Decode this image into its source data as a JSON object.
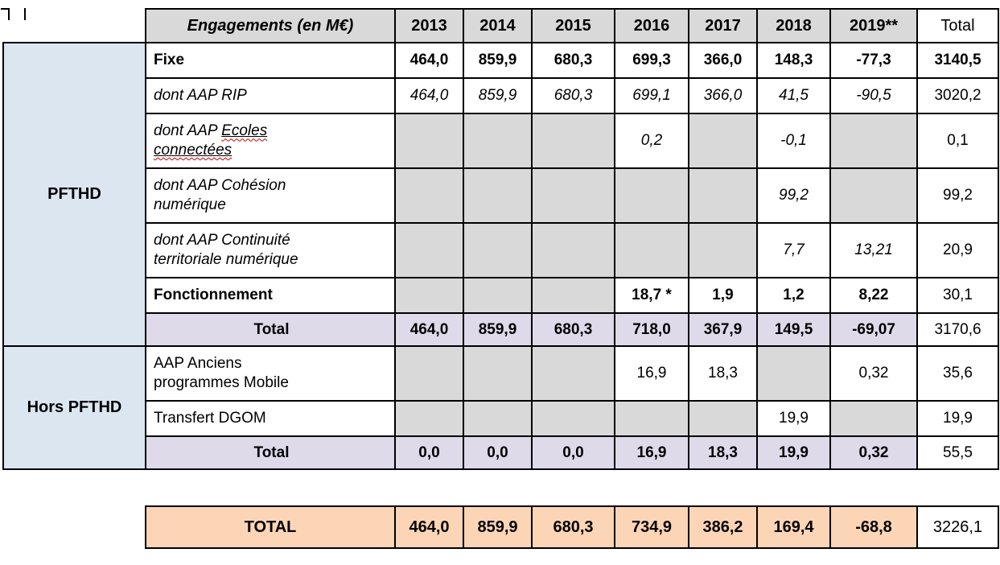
{
  "colors": {
    "gray": "#d9d9d9",
    "blue": "#dce6f1",
    "lavender": "#dedaea",
    "orange": "#fbd5b5"
  },
  "main_table": {
    "header": {
      "label": "Engagements (en M€)",
      "years": [
        "2013",
        "2014",
        "2015",
        "2016",
        "2017",
        "2018",
        "2019**"
      ],
      "total_label": "Total"
    },
    "groups": [
      {
        "name": "PFTHD",
        "rows": [
          {
            "label_lines": [
              "Fixe"
            ],
            "style": "bold",
            "align": "left",
            "bg": "white",
            "values": [
              "464,0",
              "859,9",
              "680,3",
              "699,3",
              "366,0",
              "148,3",
              "-77,3"
            ],
            "total": "3140,5",
            "total_style": "bold"
          },
          {
            "label_lines": [
              "dont AAP RIP"
            ],
            "style": "italic",
            "align": "left",
            "bg": "white",
            "values": [
              "464,0",
              "859,9",
              "680,3",
              "699,1",
              "366,0",
              "41,5",
              "-90,5"
            ],
            "total": "3020,2",
            "total_style": "normal"
          },
          {
            "label_lines": [
              "dont AAP Ecoles",
              "connectées"
            ],
            "underline_words": [
              "Ecoles",
              "connectées"
            ],
            "style": "italic",
            "align": "left",
            "bg": "white",
            "values": [
              "",
              "",
              "",
              "0,2",
              "",
              "-0,1",
              ""
            ],
            "total": "0,1",
            "total_style": "normal"
          },
          {
            "label_lines": [
              "dont AAP Cohésion",
              "numérique"
            ],
            "style": "italic",
            "align": "left",
            "bg": "white",
            "values": [
              "",
              "",
              "",
              "",
              "",
              "99,2",
              ""
            ],
            "total": "99,2",
            "total_style": "normal"
          },
          {
            "label_lines": [
              "dont AAP Continuité",
              "territoriale numérique"
            ],
            "style": "italic",
            "align": "left",
            "bg": "white",
            "values": [
              "",
              "",
              "",
              "",
              "",
              "7,7",
              "13,21"
            ],
            "total": "20,9",
            "total_style": "normal"
          },
          {
            "label_lines": [
              "Fonctionnement"
            ],
            "style": "bold",
            "align": "left",
            "bg": "white",
            "values": [
              "",
              "",
              "",
              "18,7 *",
              "1,9",
              "1,2",
              "8,22"
            ],
            "total": "30,1",
            "total_style": "normal"
          },
          {
            "label_lines": [
              "Total"
            ],
            "style": "bold",
            "align": "center",
            "bg": "lavender",
            "values": [
              "464,0",
              "859,9",
              "680,3",
              "718,0",
              "367,9",
              "149,5",
              "-69,07"
            ],
            "total": "3170,6",
            "total_style": "normal"
          }
        ]
      },
      {
        "name": "Hors PFTHD",
        "rows": [
          {
            "label_lines": [
              "AAP Anciens",
              "programmes Mobile"
            ],
            "style": "normal",
            "align": "left",
            "bg": "white",
            "values": [
              "",
              "",
              "",
              "16,9",
              "18,3",
              "",
              "0,32"
            ],
            "total": "35,6",
            "total_style": "normal"
          },
          {
            "label_lines": [
              "Transfert DGOM"
            ],
            "style": "normal",
            "align": "left",
            "bg": "white",
            "values": [
              "",
              "",
              "",
              "",
              "",
              "19,9",
              ""
            ],
            "total": "19,9",
            "total_style": "normal"
          },
          {
            "label_lines": [
              "Total"
            ],
            "style": "bold",
            "align": "center",
            "bg": "lavender",
            "values": [
              "0,0",
              "0,0",
              "0,0",
              "16,9",
              "18,3",
              "19,9",
              "0,32"
            ],
            "total": "55,5",
            "total_style": "normal"
          }
        ]
      }
    ]
  },
  "grand_total": {
    "label": "TOTAL",
    "values": [
      "464,0",
      "859,9",
      "680,3",
      "734,9",
      "386,2",
      "169,4",
      "-68,8"
    ],
    "total": "3226,1"
  }
}
